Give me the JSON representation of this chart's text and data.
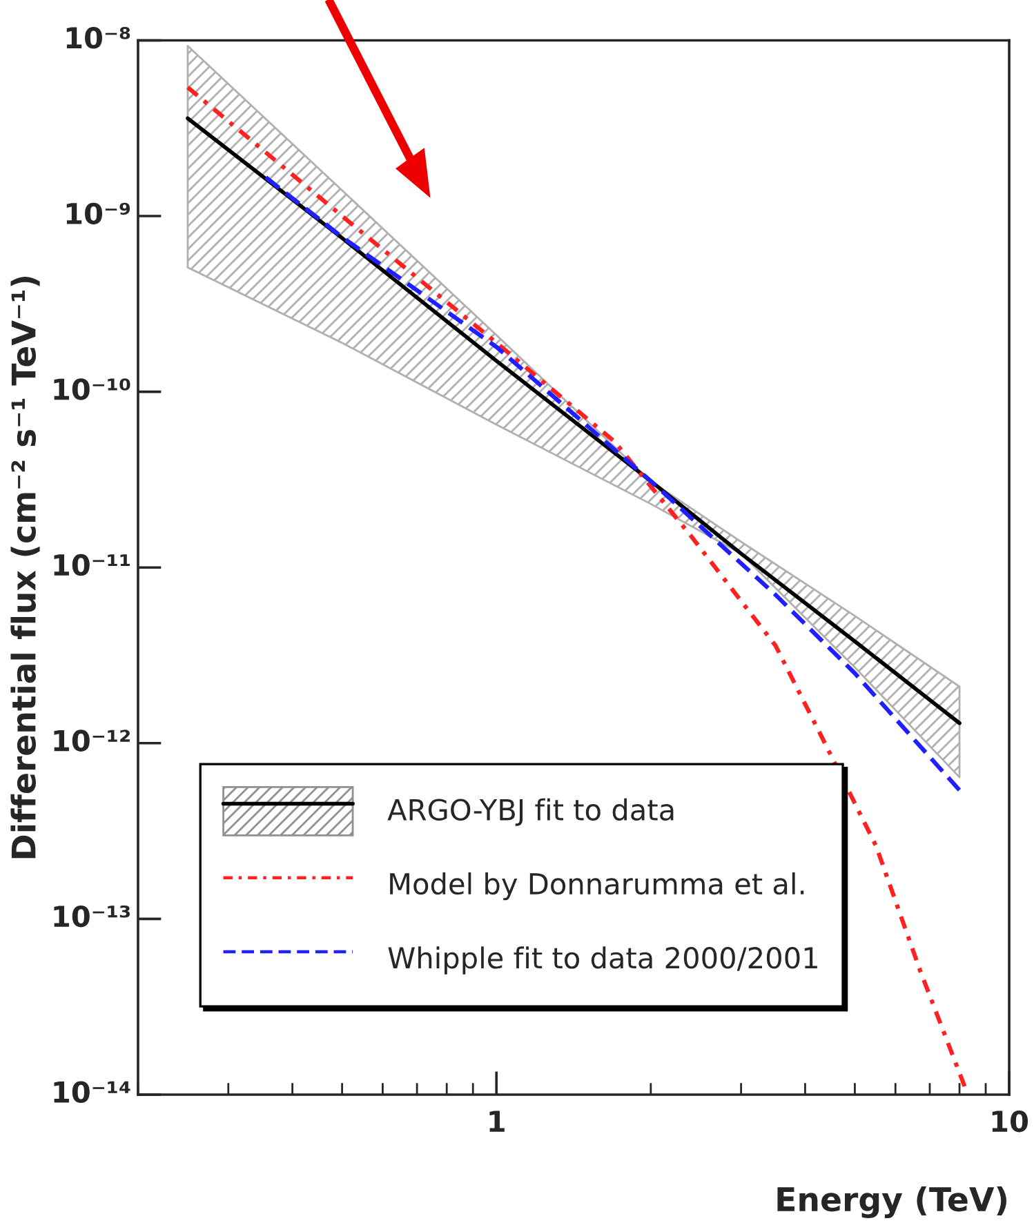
{
  "chart_data": {
    "type": "line",
    "xlabel": "Energy (TeV)",
    "ylabel": "Differential flux (cm⁻² s⁻¹ TeV⁻¹)",
    "log": "xy",
    "xlim": [
      0.2,
      10
    ],
    "ylim": [
      1e-14,
      1e-08
    ],
    "xticks": [
      1,
      10
    ],
    "yticks": [
      {
        "value": 1e-14,
        "label": "10⁻¹⁴"
      },
      {
        "value": 1e-13,
        "label": "10⁻¹³"
      },
      {
        "value": 1e-12,
        "label": "10⁻¹²"
      },
      {
        "value": 1e-11,
        "label": "10⁻¹¹"
      },
      {
        "value": 1e-10,
        "label": "10⁻¹⁰"
      },
      {
        "value": 1e-09,
        "label": "10⁻⁹"
      },
      {
        "value": 1e-08,
        "label": "10⁻⁸"
      }
    ],
    "grid": false,
    "legend": "bottom left",
    "marker": "none",
    "series": [
      {
        "name": "ARGO-YBJ fit to data",
        "color": "#000000",
        "line_style": "solid",
        "x": [
          0.25,
          0.5,
          1,
          2,
          3,
          5,
          8
        ],
        "values": [
          3.6e-09,
          7.5e-10,
          1.5e-10,
          3.1e-11,
          1.2e-11,
          3.8e-12,
          1.3e-12
        ],
        "lower": [
          5.1e-10,
          1.9e-10,
          6.5e-11,
          2.3e-11,
          1.2e-11,
          2.7e-12,
          6.4e-13
        ],
        "upper": [
          9.3e-09,
          1.4e-09,
          2.1e-10,
          3.1e-11,
          1.4e-11,
          5.3e-12,
          2.1e-12
        ]
      },
      {
        "name": "Model by Donnarumma et al.",
        "color": "#ff2020",
        "line_style": "dotted",
        "x": [
          0.25,
          0.5,
          1,
          1.7,
          2.4,
          3.5,
          4.3,
          5.5,
          6.7,
          8.2
        ],
        "values": [
          5.4e-09,
          1e-09,
          1.9e-10,
          5.2e-11,
          1.5e-11,
          3.6e-12,
          1.1e-12,
          2.6e-13,
          5.1e-14,
          1.1e-14
        ]
      },
      {
        "name": "Whipple fit to data 2000/2001",
        "color": "#2020ff",
        "line_style": "dashed",
        "x": [
          0.355,
          0.5,
          1,
          2,
          3.5,
          5,
          8
        ],
        "values": [
          1.66e-09,
          7.6e-10,
          1.8e-10,
          3.1e-11,
          7e-12,
          2.5e-12,
          5.4e-13
        ]
      }
    ]
  }
}
